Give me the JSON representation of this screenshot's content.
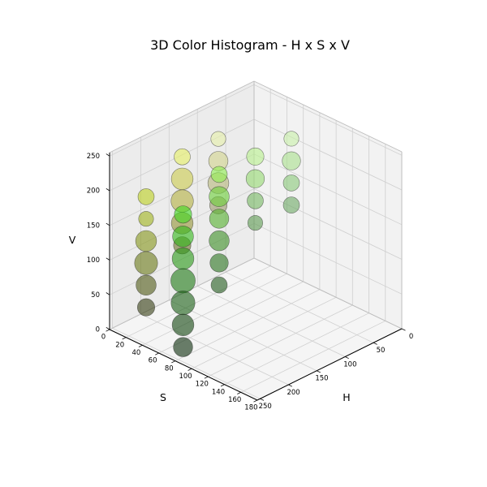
{
  "chart_data": {
    "type": "scatter3d",
    "title": "3D Color Histogram - H x S x V",
    "xlabel": "H",
    "ylabel": "S",
    "zlabel": "V",
    "xlim": [
      0,
      180
    ],
    "ylim": [
      0,
      255
    ],
    "zlim": [
      0,
      255
    ],
    "xticks": [
      "0",
      "20",
      "40",
      "60",
      "80",
      "100",
      "120",
      "140",
      "160",
      "180"
    ],
    "yticks": [
      "0",
      "50",
      "100",
      "150",
      "200",
      "250"
    ],
    "zticks": [
      "0",
      "50",
      "100",
      "150",
      "200",
      "250"
    ],
    "grid": true,
    "marker_alpha": 0.6,
    "points": [
      {
        "h": 67.5,
        "s": 31.9,
        "v": 223.1,
        "count": 3,
        "color": "#c8f0a8"
      },
      {
        "h": 67.5,
        "s": 31.9,
        "v": 191.2,
        "count": 6,
        "color": "#a8e08c"
      },
      {
        "h": 67.5,
        "s": 31.9,
        "v": 159.4,
        "count": 4,
        "color": "#88c878"
      },
      {
        "h": 67.5,
        "s": 31.9,
        "v": 127.5,
        "count": 4,
        "color": "#6ca864"
      },
      {
        "h": 22.5,
        "s": 95.6,
        "v": 223.1,
        "count": 3,
        "color": "#e6f0a8"
      },
      {
        "h": 22.5,
        "s": 95.6,
        "v": 191.2,
        "count": 7,
        "color": "#d2d48c"
      },
      {
        "h": 22.5,
        "s": 95.6,
        "v": 159.4,
        "count": 9,
        "color": "#b8b87c"
      },
      {
        "h": 22.5,
        "s": 95.6,
        "v": 127.5,
        "count": 5,
        "color": "#9c9c6c"
      },
      {
        "h": 67.5,
        "s": 95.6,
        "v": 223.1,
        "count": 5,
        "color": "#b8f08c"
      },
      {
        "h": 67.5,
        "s": 95.6,
        "v": 191.2,
        "count": 6,
        "color": "#94d870"
      },
      {
        "h": 67.5,
        "s": 95.6,
        "v": 159.4,
        "count": 4,
        "color": "#74b860"
      },
      {
        "h": 67.5,
        "s": 95.6,
        "v": 127.5,
        "count": 3,
        "color": "#5c9a50"
      },
      {
        "h": 22.5,
        "s": 159.4,
        "v": 223.1,
        "count": 4,
        "color": "#e6f064"
      },
      {
        "h": 22.5,
        "s": 159.4,
        "v": 191.2,
        "count": 10,
        "color": "#cccc4c"
      },
      {
        "h": 22.5,
        "s": 159.4,
        "v": 159.4,
        "count": 11,
        "color": "#b4b040"
      },
      {
        "h": 22.5,
        "s": 159.4,
        "v": 127.5,
        "count": 10,
        "color": "#949436"
      },
      {
        "h": 22.5,
        "s": 159.4,
        "v": 95.6,
        "count": 5,
        "color": "#6c742c"
      },
      {
        "h": 67.5,
        "s": 159.4,
        "v": 223.1,
        "count": 4,
        "color": "#90f050"
      },
      {
        "h": 67.5,
        "s": 159.4,
        "v": 191.2,
        "count": 8,
        "color": "#6cd038"
      },
      {
        "h": 67.5,
        "s": 159.4,
        "v": 159.4,
        "count": 7,
        "color": "#54b02c"
      },
      {
        "h": 67.5,
        "s": 159.4,
        "v": 127.5,
        "count": 8,
        "color": "#3c9024"
      },
      {
        "h": 67.5,
        "s": 159.4,
        "v": 95.6,
        "count": 6,
        "color": "#2c7420"
      },
      {
        "h": 67.5,
        "s": 159.4,
        "v": 63.8,
        "count": 4,
        "color": "#20581a"
      },
      {
        "h": 22.5,
        "s": 223.1,
        "v": 191.2,
        "count": 4,
        "color": "#bcd020"
      },
      {
        "h": 22.5,
        "s": 223.1,
        "v": 159.4,
        "count": 3,
        "color": "#a0b41c"
      },
      {
        "h": 22.5,
        "s": 223.1,
        "v": 127.5,
        "count": 9,
        "color": "#86961a"
      },
      {
        "h": 22.5,
        "s": 223.1,
        "v": 95.6,
        "count": 12,
        "color": "#6a7a18"
      },
      {
        "h": 22.5,
        "s": 223.1,
        "v": 63.8,
        "count": 8,
        "color": "#505a16"
      },
      {
        "h": 22.5,
        "s": 223.1,
        "v": 31.9,
        "count": 5,
        "color": "#363e12"
      },
      {
        "h": 67.5,
        "s": 223.1,
        "v": 191.2,
        "count": 5,
        "color": "#40d820"
      },
      {
        "h": 67.5,
        "s": 223.1,
        "v": 159.4,
        "count": 9,
        "color": "#30b818"
      },
      {
        "h": 67.5,
        "s": 223.1,
        "v": 127.5,
        "count": 10,
        "color": "#289a16"
      },
      {
        "h": 67.5,
        "s": 223.1,
        "v": 95.6,
        "count": 14,
        "color": "#1e7a14"
      },
      {
        "h": 67.5,
        "s": 223.1,
        "v": 63.8,
        "count": 13,
        "color": "#185e12"
      },
      {
        "h": 67.5,
        "s": 223.1,
        "v": 31.9,
        "count": 10,
        "color": "#10440e"
      },
      {
        "h": 67.5,
        "s": 223.1,
        "v": 0.0,
        "count": 7,
        "color": "#0a2c0a"
      }
    ]
  }
}
